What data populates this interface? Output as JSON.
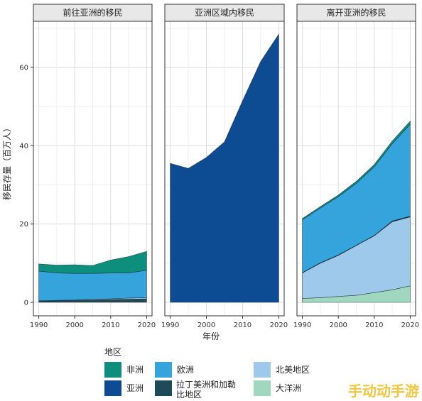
{
  "chart_data": {
    "type": "area",
    "stacked": true,
    "x": [
      1990,
      1995,
      2000,
      2005,
      2010,
      2015,
      2020
    ],
    "x_ticks": [
      1990,
      2000,
      2010,
      2020
    ],
    "y_ticks": [
      0,
      20,
      40,
      60
    ],
    "ylim": [
      0,
      72
    ],
    "xlabel": "年份",
    "ylabel": "移民存量（百万人）",
    "grid": true,
    "legend": {
      "title": "地区",
      "placement": "bottom",
      "entries": [
        {
          "key": "africa",
          "label": "非洲",
          "color": "#0e8f7e"
        },
        {
          "key": "europe",
          "label": "欧洲",
          "color": "#35a3dc"
        },
        {
          "key": "northamerica",
          "label": "北美地区",
          "color": "#9ec9ea"
        },
        {
          "key": "asia",
          "label": "亚洲",
          "color": "#0d4c93"
        },
        {
          "key": "latam",
          "label": "拉丁美洲和加勒比地区",
          "color": "#1f4a57"
        },
        {
          "key": "oceania",
          "label": "大洋洲",
          "color": "#9fd8be"
        }
      ]
    },
    "panels": [
      {
        "title": "前往亚洲的移民",
        "series": [
          {
            "key": "oceania",
            "values": [
              0.1,
              0.1,
              0.1,
              0.1,
              0.1,
              0.1,
              0.1
            ]
          },
          {
            "key": "latam",
            "values": [
              0.2,
              0.3,
              0.4,
              0.5,
              0.6,
              0.7,
              0.8
            ]
          },
          {
            "key": "northamerica",
            "values": [
              0.1,
              0.1,
              0.1,
              0.2,
              0.2,
              0.3,
              0.3
            ]
          },
          {
            "key": "europe",
            "values": [
              7.6,
              7.0,
              6.8,
              6.6,
              6.6,
              6.4,
              7.0
            ]
          },
          {
            "key": "africa",
            "values": [
              1.8,
              2.0,
              2.2,
              2.0,
              3.3,
              4.2,
              4.8
            ]
          }
        ]
      },
      {
        "title": "亚洲区域内移民",
        "series": [
          {
            "key": "asia",
            "values": [
              35.5,
              34.2,
              37.0,
              41.0,
              51.5,
              61.5,
              68.5
            ]
          }
        ]
      },
      {
        "title": "离开亚洲的移民",
        "series": [
          {
            "key": "oceania",
            "values": [
              1.0,
              1.2,
              1.5,
              1.8,
              2.5,
              3.2,
              4.2
            ]
          },
          {
            "key": "northamerica",
            "values": [
              6.5,
              8.8,
              10.5,
              12.7,
              14.5,
              17.4,
              17.6
            ]
          },
          {
            "key": "latam",
            "values": [
              0.1,
              0.1,
              0.1,
              0.1,
              0.1,
              0.2,
              0.2
            ]
          },
          {
            "key": "europe",
            "values": [
              13.5,
              14.0,
              14.9,
              15.8,
              17.5,
              19.7,
              23.5
            ]
          },
          {
            "key": "africa",
            "values": [
              0.3,
              0.35,
              0.4,
              0.5,
              0.6,
              0.7,
              0.8
            ]
          }
        ]
      }
    ]
  },
  "watermark": "手动动手游"
}
